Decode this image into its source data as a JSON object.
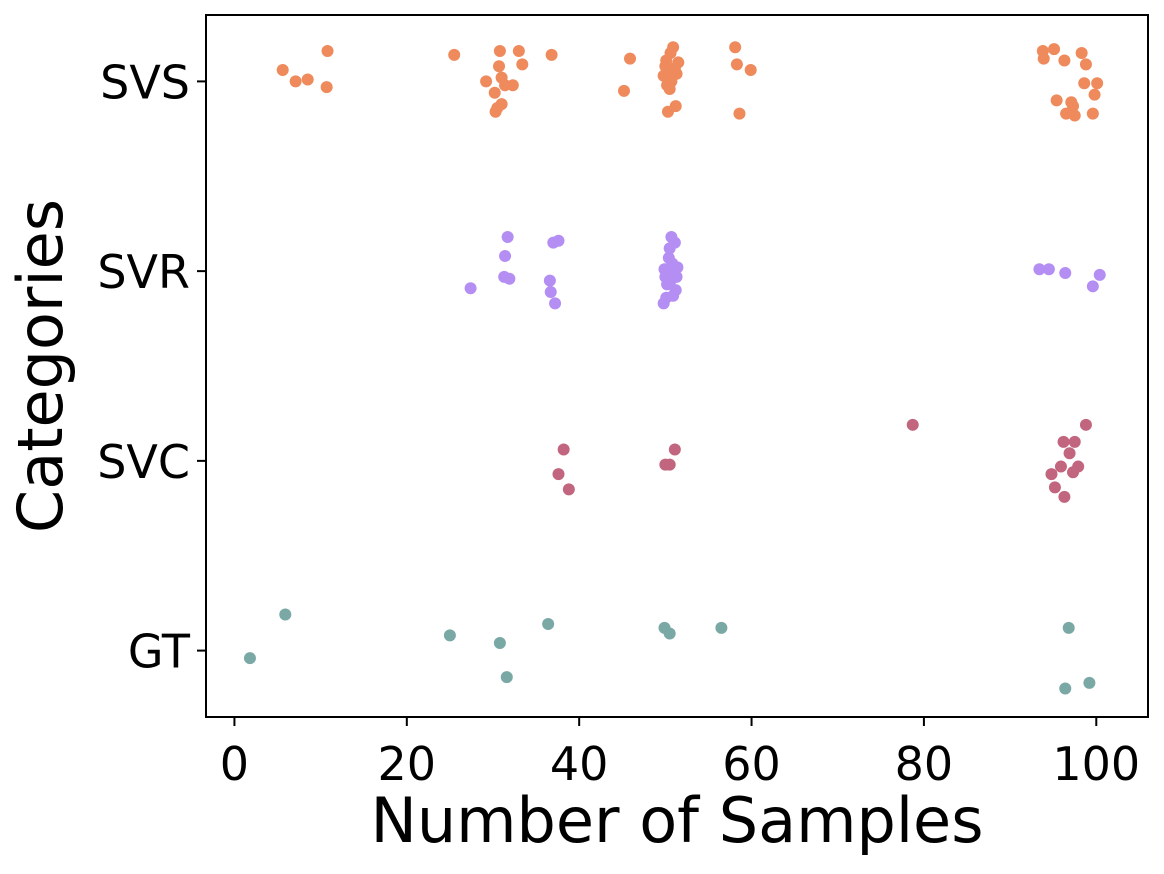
{
  "chart_data": {
    "type": "scatter",
    "title": "",
    "xlabel": "Number of Samples",
    "ylabel": "Categories",
    "xlim": [
      -3.3,
      106
    ],
    "ylim": [
      -0.35,
      3.35
    ],
    "xticks": [
      0,
      20,
      40,
      60,
      80,
      100
    ],
    "xtick_labels": [
      "0",
      "20",
      "40",
      "60",
      "80",
      "100"
    ],
    "categories": [
      "GT",
      "SVC",
      "SVR",
      "SVS"
    ],
    "grid": false,
    "legend": "none",
    "series": [
      {
        "name": "SVS",
        "color": "#ee8a5c",
        "points": [
          [
            5.6,
            3.06
          ],
          [
            7.1,
            3.0
          ],
          [
            8.5,
            3.01
          ],
          [
            10.8,
            3.16
          ],
          [
            10.7,
            2.97
          ],
          [
            25.5,
            3.14
          ],
          [
            29.2,
            3.0
          ],
          [
            30.2,
            2.94
          ],
          [
            30.3,
            2.84
          ],
          [
            30.5,
            2.86
          ],
          [
            30.7,
            3.08
          ],
          [
            30.8,
            3.16
          ],
          [
            31.0,
            3.02
          ],
          [
            31.4,
            2.98
          ],
          [
            31.0,
            2.88
          ],
          [
            32.3,
            2.98
          ],
          [
            33.0,
            3.16
          ],
          [
            33.4,
            3.09
          ],
          [
            36.8,
            3.14
          ],
          [
            45.2,
            2.95
          ],
          [
            45.9,
            3.12
          ],
          [
            49.8,
            3.03
          ],
          [
            50.0,
            3.08
          ],
          [
            50.2,
            2.98
          ],
          [
            50.1,
            3.11
          ],
          [
            50.3,
            2.84
          ],
          [
            50.4,
            3.06
          ],
          [
            50.5,
            2.96
          ],
          [
            50.6,
            3.15
          ],
          [
            50.7,
            3.0
          ],
          [
            50.9,
            3.18
          ],
          [
            51.1,
            3.07
          ],
          [
            51.3,
            3.04
          ],
          [
            51.5,
            3.1
          ],
          [
            51.2,
            2.87
          ],
          [
            58.1,
            3.18
          ],
          [
            58.3,
            3.09
          ],
          [
            58.6,
            2.83
          ],
          [
            59.9,
            3.06
          ],
          [
            93.8,
            3.16
          ],
          [
            93.9,
            3.12
          ],
          [
            95.1,
            3.17
          ],
          [
            95.4,
            2.9
          ],
          [
            96.3,
            3.11
          ],
          [
            96.5,
            2.83
          ],
          [
            97.1,
            2.89
          ],
          [
            97.3,
            2.87
          ],
          [
            97.5,
            2.82
          ],
          [
            98.3,
            3.15
          ],
          [
            98.6,
            2.99
          ],
          [
            98.8,
            3.09
          ],
          [
            99.6,
            2.83
          ],
          [
            99.8,
            2.93
          ],
          [
            100.1,
            2.99
          ]
        ]
      },
      {
        "name": "SVR",
        "color": "#b48ef3",
        "points": [
          [
            27.4,
            1.91
          ],
          [
            31.3,
            1.97
          ],
          [
            31.4,
            2.08
          ],
          [
            31.7,
            2.18
          ],
          [
            31.9,
            1.96
          ],
          [
            36.6,
            1.95
          ],
          [
            36.7,
            1.89
          ],
          [
            37.0,
            2.15
          ],
          [
            37.2,
            1.83
          ],
          [
            37.6,
            2.16
          ],
          [
            49.8,
            1.83
          ],
          [
            49.9,
            2.01
          ],
          [
            50.0,
            1.97
          ],
          [
            50.1,
            1.86
          ],
          [
            50.2,
            1.93
          ],
          [
            50.3,
            1.99
          ],
          [
            50.4,
            2.07
          ],
          [
            50.5,
            2.12
          ],
          [
            50.6,
            1.95
          ],
          [
            50.7,
            2.18
          ],
          [
            50.8,
            2.04
          ],
          [
            50.9,
            1.87
          ],
          [
            51.0,
            2.0
          ],
          [
            51.1,
            2.15
          ],
          [
            51.2,
            1.9
          ],
          [
            51.3,
            1.97
          ],
          [
            51.4,
            2.02
          ],
          [
            93.4,
            2.01
          ],
          [
            94.5,
            2.01
          ],
          [
            96.4,
            1.99
          ],
          [
            99.6,
            1.92
          ],
          [
            100.4,
            1.98
          ]
        ]
      },
      {
        "name": "SVC",
        "color": "#c26680",
        "points": [
          [
            37.6,
            0.93
          ],
          [
            38.2,
            1.06
          ],
          [
            38.8,
            0.85
          ],
          [
            50.0,
            0.98
          ],
          [
            50.5,
            0.98
          ],
          [
            51.1,
            1.06
          ],
          [
            78.7,
            1.19
          ],
          [
            94.8,
            0.93
          ],
          [
            95.2,
            0.86
          ],
          [
            95.9,
            0.97
          ],
          [
            96.2,
            1.1
          ],
          [
            96.3,
            0.81
          ],
          [
            96.9,
            1.04
          ],
          [
            97.3,
            0.94
          ],
          [
            97.5,
            1.1
          ],
          [
            97.9,
            0.97
          ],
          [
            98.8,
            1.19
          ]
        ]
      },
      {
        "name": "GT",
        "color": "#7aa8a5",
        "points": [
          [
            1.8,
            -0.04
          ],
          [
            5.9,
            0.19
          ],
          [
            25.0,
            0.08
          ],
          [
            30.8,
            0.04
          ],
          [
            31.6,
            -0.14
          ],
          [
            36.4,
            0.14
          ],
          [
            49.9,
            0.12
          ],
          [
            50.5,
            0.09
          ],
          [
            56.5,
            0.12
          ],
          [
            96.8,
            0.12
          ],
          [
            96.4,
            -0.2
          ],
          [
            99.2,
            -0.17
          ]
        ]
      }
    ]
  }
}
